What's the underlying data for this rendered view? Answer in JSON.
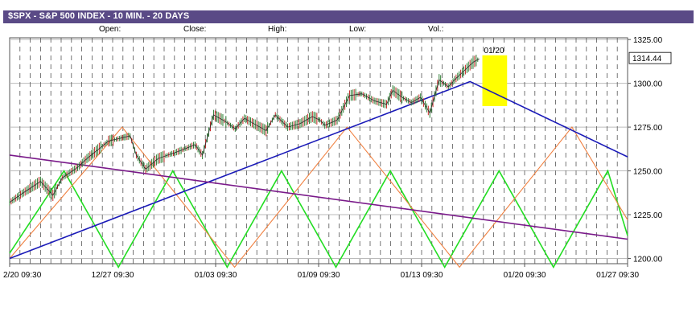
{
  "header": {
    "title": "$SPX - S&P 500 INDEX - 10 MIN. - 20 DAYS",
    "open_label": "Open:",
    "close_label": "Close:",
    "high_label": "High:",
    "low_label": "Low:",
    "vol_label": "Vol.:"
  },
  "colors": {
    "title_bar": "#5a4a86",
    "price": "#2a2a2a",
    "up_bar": "#2e7d32",
    "down_bar": "#c62828",
    "trend_blue": "#1a1ab8",
    "trend_purple": "#7a1a8a",
    "zigzag_green": "#22dd22",
    "zigzag_orange": "#f08040",
    "highlight": "#ffff00"
  },
  "chart_data": {
    "type": "line",
    "title": "$SPX - S&P 500 INDEX - 10 MIN. - 20 DAYS",
    "x_ticks": [
      "2/20 09:30",
      "12/27 09:30",
      "01/03 09:30",
      "01/09 09:30",
      "01/13 09:30",
      "01/20 09:30",
      "01/27 09:30"
    ],
    "y_ticks": [
      1200,
      1225,
      1250,
      1275,
      1300,
      1325
    ],
    "ylim": [
      1197,
      1326
    ],
    "x_range": [
      0,
      100
    ],
    "grid": true,
    "last_value": 1314.44,
    "last_value_label": "1314.44",
    "highlight_label": "01/20",
    "highlight_range": {
      "x": [
        76.5,
        80.5
      ],
      "y": [
        1287,
        1316
      ]
    },
    "price_series": {
      "name": "",
      "x": [
        0,
        2,
        5,
        7,
        8.5,
        11,
        12.5,
        16,
        19.5,
        20.5,
        22,
        24,
        28,
        30,
        31.2,
        33,
        35,
        36.5,
        38,
        40,
        41.5,
        43,
        45,
        47,
        49,
        50.2,
        51,
        53,
        55,
        57,
        59,
        61,
        62,
        63.5,
        65,
        66.5,
        68,
        69.5,
        71,
        72,
        73.5,
        75,
        76
      ],
      "values": [
        1232,
        1237,
        1244,
        1236,
        1246,
        1252,
        1257,
        1267,
        1270,
        1259,
        1251,
        1257,
        1262,
        1265,
        1259,
        1282,
        1278,
        1274,
        1280,
        1276,
        1273,
        1282,
        1275,
        1277,
        1281,
        1279,
        1276,
        1279,
        1293,
        1294,
        1290,
        1288,
        1296,
        1292,
        1289,
        1292,
        1283,
        1302,
        1298,
        1302,
        1307,
        1312,
        1314
      ]
    },
    "trend_lines": [
      {
        "name": "",
        "color": "#1a1ab8",
        "x": [
          0,
          74.5,
          100
        ],
        "values": [
          1200,
          1301,
          1258
        ]
      },
      {
        "name": "",
        "color": "#7a1a8a",
        "x": [
          0,
          100
        ],
        "values": [
          1259,
          1211
        ]
      }
    ],
    "zigzags": [
      {
        "name": "",
        "color": "#22dd22",
        "x": [
          0,
          8.8,
          17.6,
          26.4,
          35.2,
          44,
          52.8,
          61.6,
          70.4,
          79.2,
          88,
          96.8,
          100
        ],
        "values": [
          1203,
          1250,
          1195,
          1250,
          1195,
          1250,
          1195,
          1250,
          1195,
          1250,
          1195,
          1250,
          1213
        ]
      },
      {
        "name": "",
        "color": "#f08040",
        "x": [
          0,
          18.2,
          36.4,
          54.6,
          72.8,
          91,
          100
        ],
        "values": [
          1200,
          1275,
          1195,
          1275,
          1195,
          1275,
          1222
        ]
      }
    ]
  }
}
